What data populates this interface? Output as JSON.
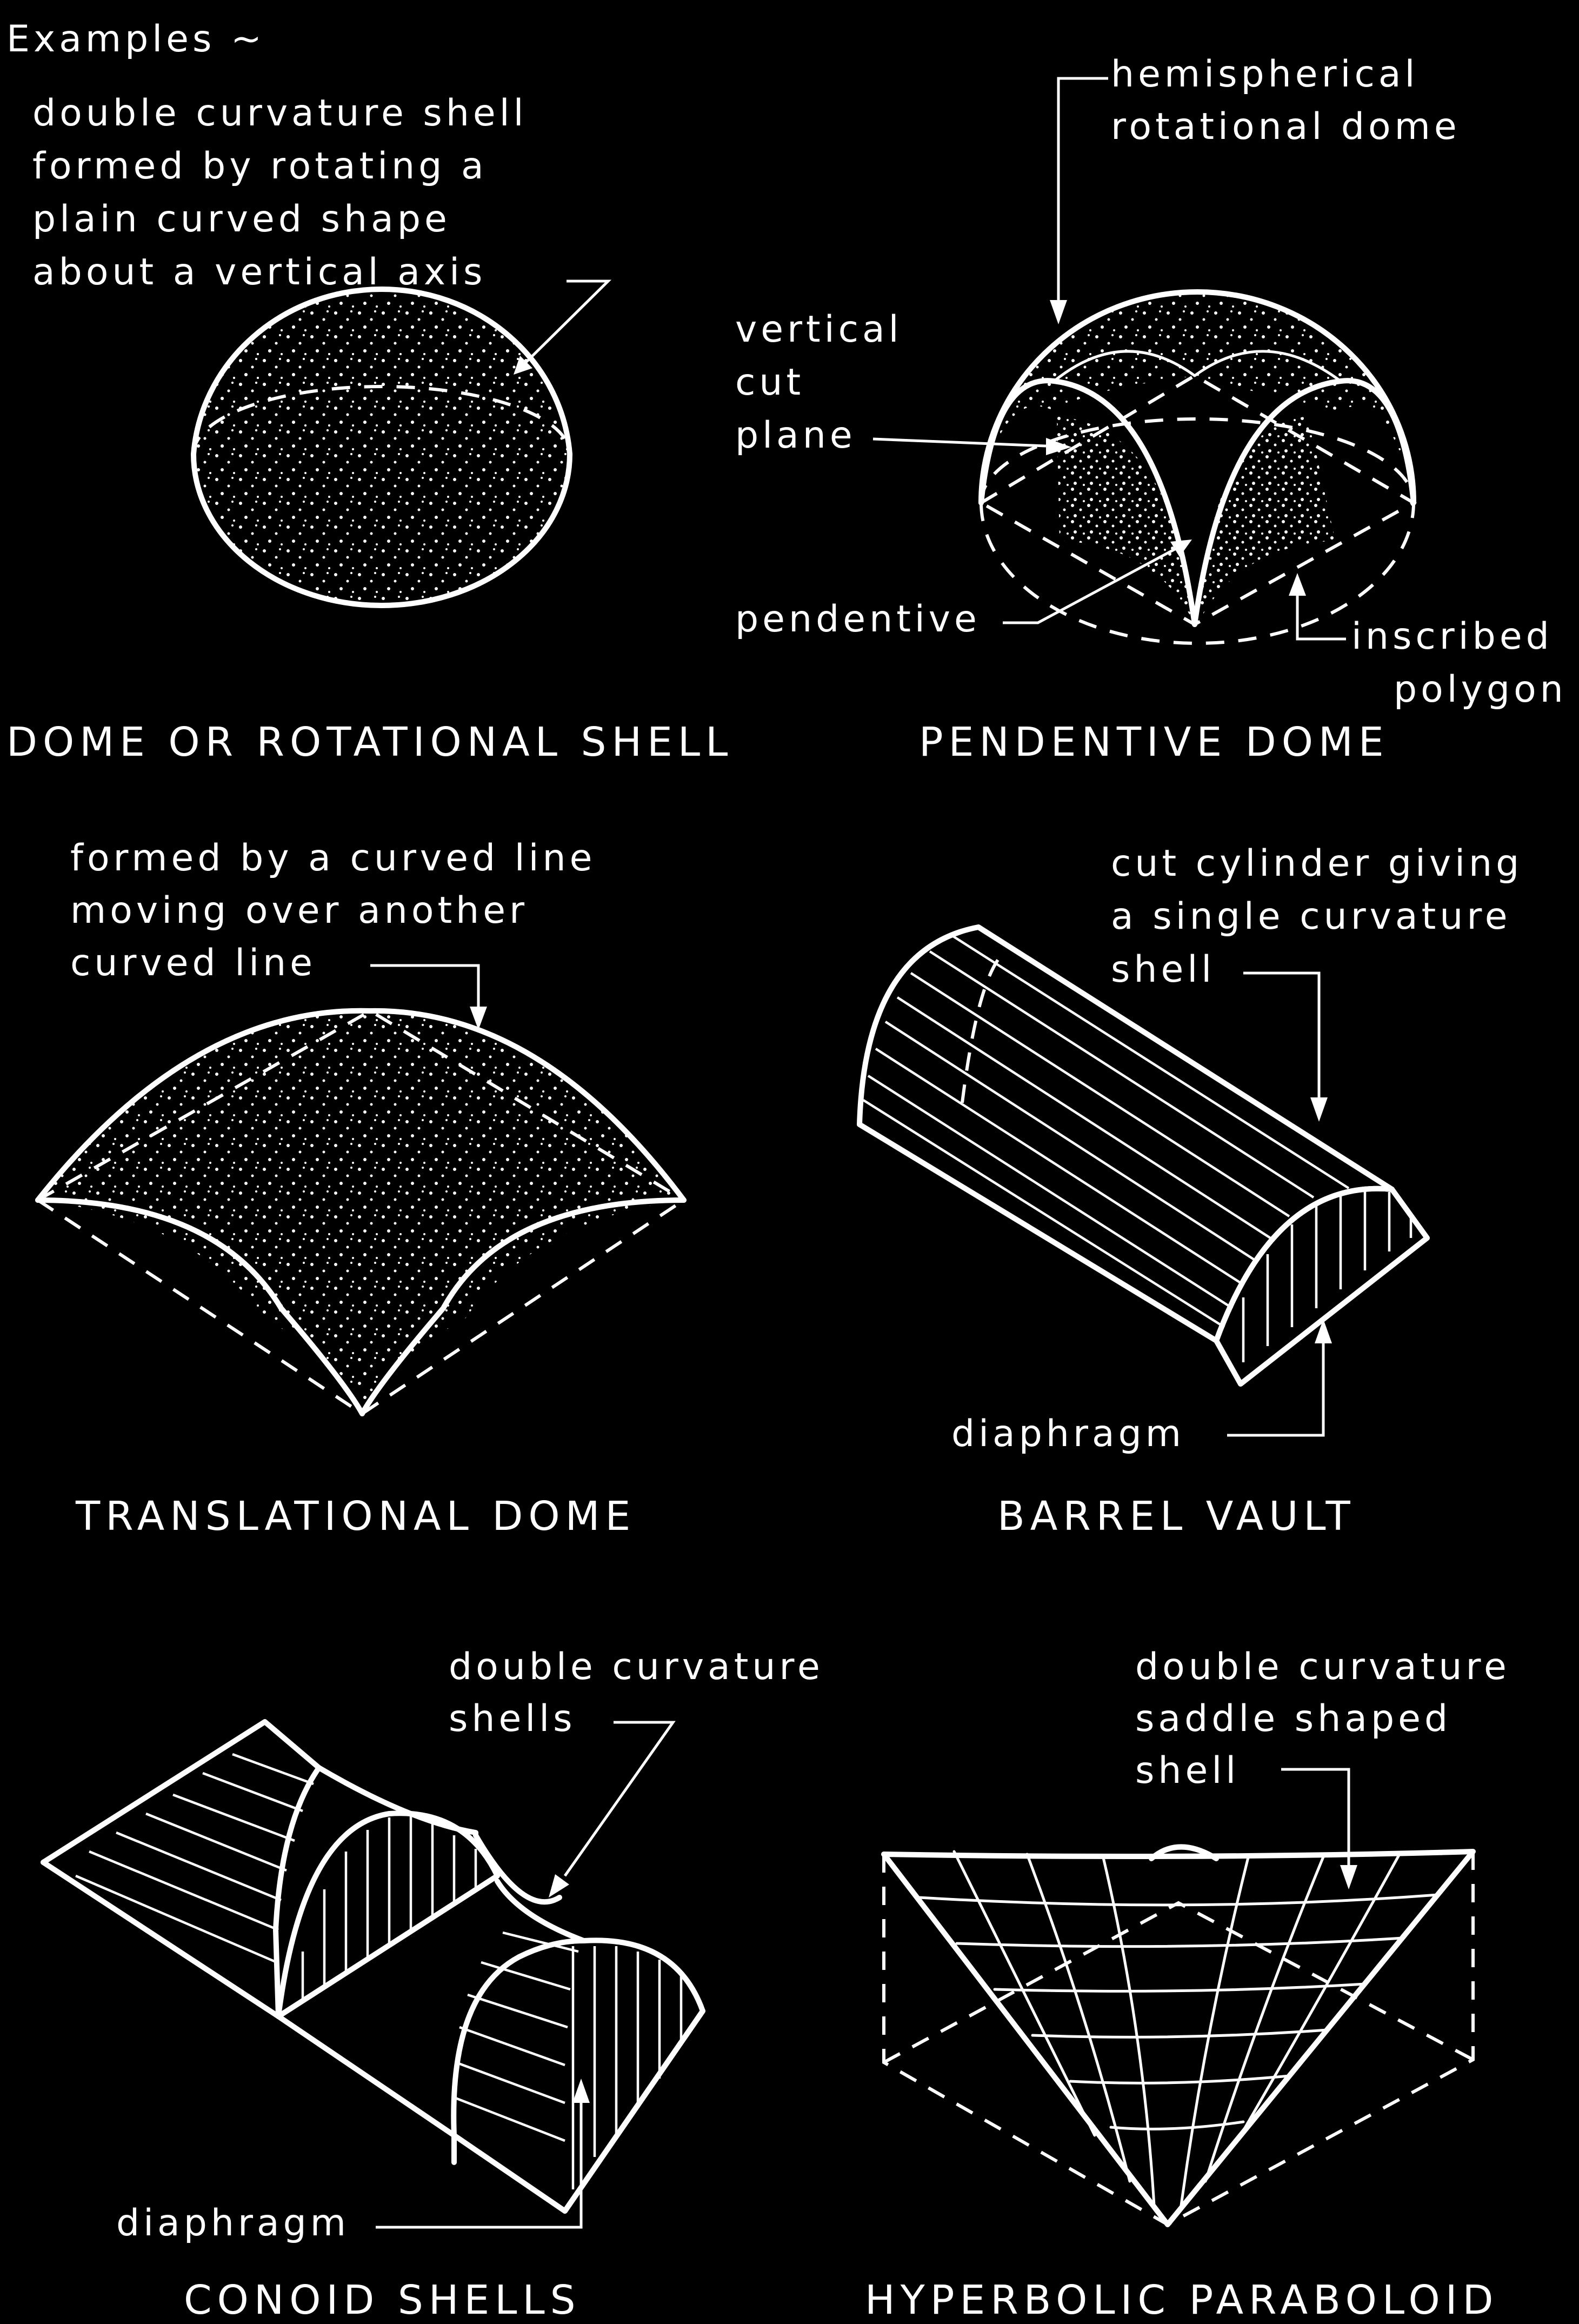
{
  "heading": "Examples ~",
  "panels": {
    "dome": {
      "title": "DOME OR ROTATIONAL SHELL",
      "note": [
        "double curvature shell",
        "formed by rotating a",
        "plain curved shape",
        "about a vertical axis"
      ]
    },
    "pendentive": {
      "title": "PENDENTIVE DOME",
      "label_top": [
        "hemispherical",
        "rotational dome"
      ],
      "label_cut": [
        "vertical",
        "cut",
        "plane"
      ],
      "label_pendentive": "pendentive",
      "label_polygon": [
        "inscribed",
        "polygon"
      ]
    },
    "translational": {
      "title": "TRANSLATIONAL DOME",
      "note": [
        "formed by a curved line",
        "moving over another",
        "curved line"
      ]
    },
    "barrel": {
      "title": "BARREL VAULT",
      "note": [
        "cut cylinder giving",
        "a single curvature",
        "shell"
      ],
      "label_diaphragm": "diaphragm"
    },
    "conoid": {
      "title": "CONOID SHELLS",
      "note": [
        "double curvature",
        "shells"
      ],
      "label_diaphragm": "diaphragm"
    },
    "hypar": {
      "title": "HYPERBOLIC PARABOLOID",
      "note": [
        "double curvature",
        "saddle shaped",
        "shell"
      ]
    }
  }
}
